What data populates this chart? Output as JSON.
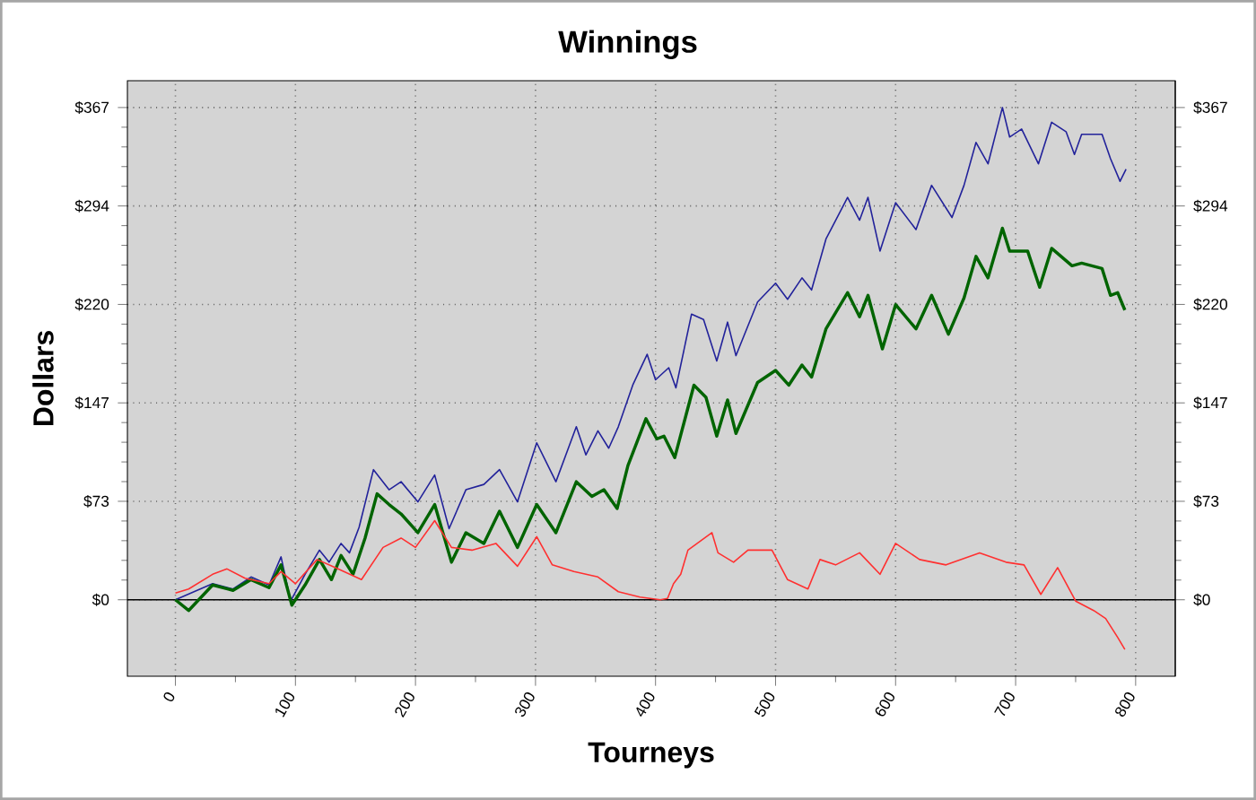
{
  "chart_data": {
    "type": "line",
    "title": "Winnings",
    "xlabel": "Tourneys",
    "ylabel": "Dollars",
    "xlim": [
      -40,
      833
    ],
    "ylim": [
      -57,
      387
    ],
    "y2lim": [
      -57,
      387
    ],
    "xticks": [
      0,
      100,
      200,
      300,
      400,
      500,
      600,
      700,
      800
    ],
    "yticks": [
      {
        "value": 0,
        "label": "$0"
      },
      {
        "value": 73.4,
        "label": "$73"
      },
      {
        "value": 146.8,
        "label": "$147"
      },
      {
        "value": 220.2,
        "label": "$220"
      },
      {
        "value": 293.6,
        "label": "$294"
      },
      {
        "value": 367,
        "label": "$367"
      }
    ],
    "y2ticks": [
      {
        "value": 0,
        "label": "$0"
      },
      {
        "value": 73.4,
        "label": "$73"
      },
      {
        "value": 146.8,
        "label": "$147"
      },
      {
        "value": 220.2,
        "label": "$220"
      },
      {
        "value": 293.6,
        "label": "$294"
      },
      {
        "value": 367,
        "label": "$367"
      }
    ],
    "grid": true,
    "marker": "none",
    "line_style": "solid",
    "ref_lines": [
      {
        "axis": "y",
        "value": 0,
        "color": "#000000"
      }
    ],
    "series": [
      {
        "color": "#22229a",
        "x": [
          0,
          31,
          48,
          63,
          78,
          88,
          96,
          108,
          120,
          128,
          138,
          145,
          153,
          165,
          178,
          188,
          202,
          216,
          228,
          242,
          257,
          270,
          285,
          301,
          317,
          334,
          342,
          352,
          361,
          369,
          381,
          393,
          400,
          411,
          417,
          430,
          440,
          451,
          460,
          467,
          485,
          500,
          510,
          522,
          530,
          542,
          560,
          570,
          577,
          587,
          600,
          617,
          630,
          647,
          657,
          667,
          677,
          689,
          695,
          705,
          719,
          730,
          742,
          749,
          755,
          772,
          779,
          787,
          792
        ],
        "values": [
          0,
          12,
          8,
          17,
          11,
          32,
          -1,
          19,
          37,
          28,
          42,
          35,
          54,
          97,
          82,
          88,
          73,
          93,
          53,
          82,
          86,
          97,
          73,
          117,
          88,
          129,
          108,
          126,
          113,
          129,
          160,
          183,
          164,
          173,
          158,
          213,
          209,
          178,
          207,
          182,
          222,
          236,
          224,
          240,
          231,
          269,
          300,
          283,
          300,
          260,
          296,
          276,
          309,
          285,
          309,
          341,
          325,
          367,
          345,
          351,
          325,
          356,
          349,
          332,
          347,
          347,
          329,
          312,
          321
        ]
      },
      {
        "color": "#006400",
        "x": [
          0,
          11,
          31,
          48,
          63,
          78,
          88,
          97,
          108,
          120,
          130,
          138,
          148,
          158,
          168,
          178,
          188,
          202,
          216,
          230,
          242,
          257,
          270,
          285,
          301,
          317,
          334,
          347,
          357,
          368,
          377,
          392,
          401,
          407,
          416,
          432,
          442,
          451,
          460,
          467,
          485,
          500,
          511,
          522,
          530,
          542,
          560,
          570,
          577,
          589,
          600,
          617,
          630,
          644,
          657,
          667,
          677,
          689,
          695,
          710,
          720,
          730,
          747,
          755,
          772,
          779,
          785,
          791
        ],
        "values": [
          0,
          -8,
          11,
          7,
          15,
          9,
          26,
          -4,
          11,
          30,
          15,
          33,
          19,
          46,
          79,
          71,
          64,
          50,
          71,
          28,
          50,
          42,
          66,
          39,
          71,
          50,
          88,
          77,
          82,
          68,
          100,
          135,
          120,
          122,
          106,
          160,
          151,
          122,
          149,
          124,
          162,
          171,
          160,
          175,
          166,
          202,
          229,
          211,
          227,
          187,
          220,
          202,
          227,
          198,
          225,
          256,
          240,
          277,
          260,
          260,
          233,
          262,
          249,
          251,
          247,
          227,
          229,
          216
        ]
      },
      {
        "color": "#ff3030",
        "x": [
          0,
          11,
          31,
          43,
          58,
          78,
          88,
          100,
          118,
          133,
          155,
          173,
          188,
          200,
          216,
          230,
          247,
          267,
          285,
          301,
          314,
          332,
          352,
          369,
          387,
          404,
          410,
          415,
          421,
          427,
          447,
          452,
          465,
          477,
          497,
          510,
          527,
          537,
          550,
          570,
          587,
          600,
          620,
          642,
          670,
          692,
          707,
          721,
          735,
          750,
          765,
          775,
          785,
          791
        ],
        "values": [
          5,
          8,
          19,
          23,
          16,
          12,
          21,
          12,
          30,
          24,
          15,
          39,
          46,
          39,
          59,
          39,
          37,
          42,
          25,
          47,
          26,
          21,
          17,
          6,
          2,
          0,
          1,
          12,
          19,
          37,
          50,
          35,
          28,
          37,
          37,
          15,
          8,
          30,
          26,
          35,
          19,
          42,
          30,
          26,
          35,
          28,
          26,
          4,
          24,
          -1,
          -8,
          -14,
          -28,
          -37
        ]
      }
    ]
  }
}
